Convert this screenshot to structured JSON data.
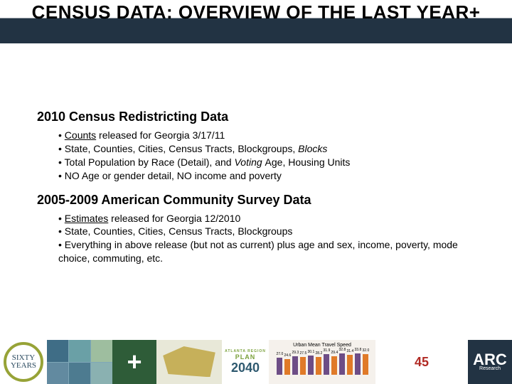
{
  "colors": {
    "title_band_dark": "#223343",
    "text": "#000000",
    "background": "#ffffff",
    "footer_badge_bg": "#ffffff",
    "footer_badge_ring": "#97a337",
    "footer_badge_text": "#2b4a5f",
    "footer_map_bg": "#7fa7b8",
    "footer_map_cells": [
      "#3f6d86",
      "#6aa0a6",
      "#9ebe9f",
      "#628aa0",
      "#4d7b90",
      "#8ab1b1"
    ],
    "footer_plus_bg": "#2e5c38",
    "footer_plus_fg": "#ffffff",
    "footer_study_bg": "#e8e8d8",
    "footer_study_shape": "#c6b05a",
    "footer_plan_bg": "#ffffff",
    "footer_plan_green": "#7aa03a",
    "footer_plan_blue": "#2f5a70",
    "footer_chart_bg": "#f5f1ec",
    "footer_chart_purple": "#6d4d86",
    "footer_chart_orange": "#e07a28",
    "footer_text_bg": "#ffffff",
    "footer_text_red": "#b12a24",
    "footer_arc_bg": "#223343",
    "footer_arc_fg": "#ffffff"
  },
  "typography": {
    "title_font": "Arial Narrow",
    "title_size_pt": 19,
    "heading_font": "Verdana",
    "heading_size_pt": 14,
    "bullet_font": "Verdana",
    "bullet_size_pt": 11
  },
  "title": "CENSUS DATA: OVERVIEW OF THE LAST YEAR+",
  "sections": [
    {
      "heading": "2010 Census Redistricting Data",
      "bullets": [
        {
          "parts": [
            {
              "u": true,
              "t": "Counts"
            },
            {
              "t": " released for Georgia 3/17/11"
            }
          ]
        },
        {
          "parts": [
            {
              "t": "State, Counties, Cities, Census Tracts, Blockgroups, "
            },
            {
              "i": true,
              "t": "Blocks"
            }
          ]
        },
        {
          "parts": [
            {
              "t": "Total Population by Race (Detail), and "
            },
            {
              "i": true,
              "t": "Voting "
            },
            {
              "t": "Age, Housing Units"
            }
          ]
        },
        {
          "parts": [
            {
              "t": "NO Age or gender detail, NO income and poverty"
            }
          ]
        }
      ]
    },
    {
      "heading": "2005-2009 American Community Survey Data",
      "bullets": [
        {
          "parts": [
            {
              "u": true,
              "t": "Estimates"
            },
            {
              "t": " released for Georgia 12/2010"
            }
          ]
        },
        {
          "parts": [
            {
              "t": "State, Counties, Cities, Census Tracts, Blockgroups"
            }
          ]
        },
        {
          "parts": [
            {
              "t": "Everything in above release (but not as current) plus age and sex, income, poverty, mode choice, commuting, etc."
            }
          ]
        }
      ]
    }
  ],
  "footer": {
    "badge": {
      "top": "SIXTY",
      "bottom": "YEARS"
    },
    "plan": {
      "region": "ATLANTA REGION",
      "label": "PLAN",
      "year": "2040"
    },
    "mini_chart": {
      "type": "bar",
      "title": "Urban Mean Travel Speed",
      "series_colors": [
        "#6d4d86",
        "#e07a28"
      ],
      "categories": [
        "",
        "",
        "",
        "",
        "",
        ""
      ],
      "pairs": [
        [
          27.0,
          24.6
        ],
        [
          29.3,
          27.5
        ],
        [
          30.1,
          28.2
        ],
        [
          31.9,
          29.4
        ],
        [
          32.8,
          31.4
        ],
        [
          33.8,
          32.0
        ]
      ],
      "ylim": [
        0,
        40
      ],
      "bg": "#f5f1ec"
    },
    "red_text": "45",
    "arc": {
      "brand": "ARC",
      "sub": "Research"
    }
  }
}
